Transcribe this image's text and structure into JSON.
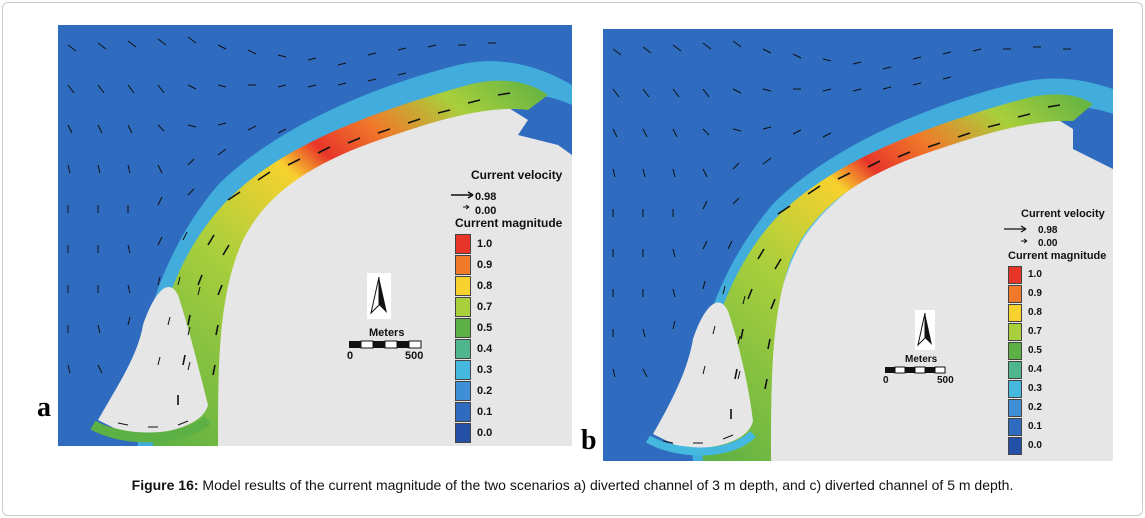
{
  "panel_a": {
    "letter": "a",
    "current_velocity_title": "Current velocity",
    "arrow_values": [
      "0.98",
      "0.00"
    ],
    "magnitude_title": "Current magnitude",
    "magnitude_levels": [
      "1.0",
      "0.9",
      "0.8",
      "0.7",
      "0.5",
      "0.4",
      "0.3",
      "0.2",
      "0.1",
      "0.0"
    ],
    "scale_title": "Meters",
    "scale_ticks": [
      "0",
      "500"
    ]
  },
  "panel_b": {
    "letter": "b",
    "current_velocity_title": "Current velocity",
    "arrow_values": [
      "0.98",
      "0.00"
    ],
    "magnitude_title": "Current magnitude",
    "magnitude_levels": [
      "1.0",
      "0.9",
      "0.8",
      "0.7",
      "0.5",
      "0.4",
      "0.3",
      "0.2",
      "0.1",
      "0.0"
    ],
    "scale_title": "Meters",
    "scale_ticks": [
      "0",
      "500"
    ]
  },
  "magnitude_colors": [
    "#e8352a",
    "#f07a2a",
    "#f7d12e",
    "#a9cf3c",
    "#5cb044",
    "#4fb58d",
    "#45b8e0",
    "#3f8fd6",
    "#2f6cbf",
    "#2450a8"
  ],
  "caption": {
    "label": "Figure 16:",
    "text": " Model results of the current magnitude of the two scenarios a) diverted channel of 3 m depth, and c) diverted channel of 5 m depth."
  }
}
